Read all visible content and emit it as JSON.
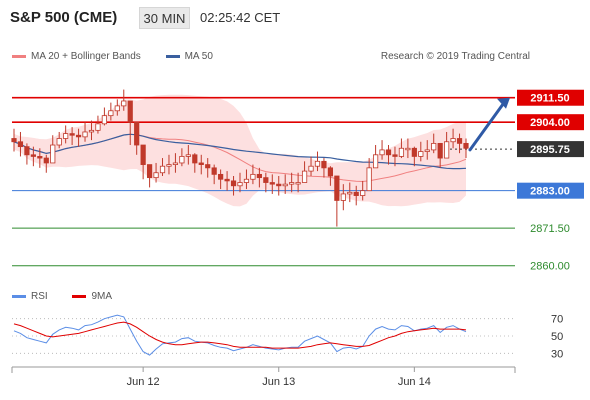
{
  "header": {
    "symbol": "S&P 500 (CME)",
    "timeframe": "30 MIN",
    "clock": "02:25:42 CET"
  },
  "legend": {
    "ma20_label": "MA 20 + Bollinger Bands",
    "ma50_label": "MA 50",
    "rsi_label": "RSI",
    "ma9_label": "9MA",
    "research": "Research © 2019 Trading Central"
  },
  "colors": {
    "band_fill": "#fde0e0",
    "ma20": "#f08080",
    "ma50": "#3a5f9f",
    "candle": "#c0392b",
    "resistance": "#e00000",
    "pivot": "#3c78d8",
    "support": "#2e8b2e",
    "current": "#333333",
    "forecast_arrow": "#2f5aa6",
    "rsi_line": "#5b8ee6",
    "ma9_line": "#e00000"
  },
  "chart_data": [
    {
      "type": "candlestick",
      "title": "S&P 500 (CME)",
      "interval": "30 MIN",
      "ylim": [
        2855,
        2920
      ],
      "x_ticks": [
        "Jun 12",
        "Jun 13",
        "Jun 14"
      ],
      "current_price": 2895.75,
      "levels": [
        {
          "label": "2911.50",
          "value": 2911.5,
          "role": "resistance"
        },
        {
          "label": "2904.00",
          "value": 2904.0,
          "role": "resistance"
        },
        {
          "label": "2895.75",
          "value": 2895.75,
          "role": "current"
        },
        {
          "label": "2883.00",
          "value": 2883.0,
          "role": "pivot"
        },
        {
          "label": "2871.50",
          "value": 2871.5,
          "role": "support"
        },
        {
          "label": "2860.00",
          "value": 2860.0,
          "role": "support"
        }
      ],
      "forecast": {
        "from": 2895.5,
        "to": 2911.5
      },
      "close": [
        2898,
        2896.5,
        2894,
        2893.5,
        2893,
        2891.5,
        2897,
        2899,
        2900.5,
        2900,
        2899.5,
        2901,
        2901.5,
        2903.5,
        2906,
        2907.5,
        2909,
        2910.5,
        2904,
        2897,
        2891,
        2887,
        2888.5,
        2890.5,
        2891,
        2891.5,
        2893.5,
        2894,
        2891.5,
        2891,
        2890,
        2888,
        2886.5,
        2886,
        2884.5,
        2885.5,
        2886.5,
        2888,
        2887,
        2885.5,
        2885,
        2884.5,
        2885,
        2885.5,
        2885.5,
        2889,
        2890.5,
        2892,
        2890,
        2887.5,
        2880,
        2882,
        2882.5,
        2881.5,
        2883,
        2890,
        2894,
        2895.5,
        2894,
        2893.5,
        2896,
        2896,
        2893.5,
        2895,
        2895.5,
        2897.5,
        2893,
        2898,
        2899,
        2897.5,
        2896
      ],
      "high": [
        2902,
        2901,
        2897.5,
        2896.5,
        2896,
        2894,
        2900,
        2901,
        2903,
        2902.5,
        2902,
        2904,
        2904.5,
        2906,
        2908.5,
        2910,
        2911,
        2914,
        2909,
        2900,
        2894.5,
        2890,
        2891.5,
        2893,
        2894,
        2894.5,
        2896,
        2897,
        2894.5,
        2894,
        2893,
        2891,
        2889.5,
        2889,
        2887.5,
        2888.5,
        2889.5,
        2891,
        2890,
        2888.5,
        2888,
        2887.5,
        2888,
        2888.5,
        2888.5,
        2892,
        2893.5,
        2895,
        2893,
        2890.5,
        2885,
        2885,
        2885.5,
        2884.5,
        2886,
        2893,
        2897,
        2898.5,
        2897,
        2896.5,
        2899,
        2899,
        2896.5,
        2898,
        2898.5,
        2900.5,
        2896,
        2901,
        2902,
        2900.5,
        2899
      ],
      "low": [
        2895,
        2893.5,
        2891,
        2890.5,
        2890,
        2888.5,
        2894,
        2896,
        2897.5,
        2897,
        2896.5,
        2898,
        2898.5,
        2900.5,
        2903,
        2904.5,
        2906,
        2907.5,
        2897,
        2894,
        2886.5,
        2884,
        2885.5,
        2887.5,
        2888,
        2888.5,
        2890.5,
        2891,
        2888.5,
        2888,
        2887,
        2885,
        2883.5,
        2883,
        2881.5,
        2882.5,
        2883.5,
        2885,
        2884,
        2882.5,
        2882,
        2881.5,
        2882,
        2882.5,
        2882.5,
        2886,
        2887.5,
        2889,
        2887,
        2884.5,
        2872,
        2877,
        2879.5,
        2878.5,
        2880,
        2887,
        2891,
        2892.5,
        2891,
        2890.5,
        2893,
        2893,
        2890.5,
        2892,
        2892.5,
        2894.5,
        2890,
        2895,
        2896,
        2894.5,
        2893
      ]
    },
    {
      "type": "line",
      "title": "RSI",
      "series": [
        {
          "name": "RSI",
          "values": [
            56,
            53,
            48,
            46,
            44,
            42,
            52,
            57,
            60,
            59,
            57,
            62,
            63,
            66,
            70,
            72,
            74,
            72,
            58,
            44,
            32,
            28,
            35,
            41,
            42,
            43,
            47,
            48,
            44,
            43,
            42,
            39,
            37,
            36,
            33,
            35,
            37,
            40,
            38,
            36,
            35,
            34,
            36,
            37,
            37,
            44,
            47,
            50,
            46,
            42,
            32,
            36,
            37,
            35,
            38,
            50,
            58,
            61,
            58,
            57,
            62,
            61,
            56,
            58,
            59,
            62,
            54,
            60,
            62,
            58,
            55
          ]
        },
        {
          "name": "9MA",
          "values": [
            64,
            62,
            59,
            56,
            53,
            50,
            49,
            50,
            51,
            52,
            53,
            55,
            57,
            59,
            61,
            63,
            65,
            66,
            64,
            60,
            55,
            50,
            46,
            43,
            41,
            40,
            40,
            41,
            42,
            43,
            43,
            42,
            41,
            40,
            38,
            37,
            37,
            37,
            37,
            37,
            36,
            36,
            36,
            36,
            36,
            37,
            38,
            40,
            41,
            42,
            41,
            40,
            39,
            38,
            38,
            39,
            42,
            45,
            48,
            50,
            53,
            55,
            56,
            57,
            58,
            59,
            58,
            58,
            58,
            58,
            57
          ]
        }
      ],
      "ylim": [
        20,
        80
      ],
      "y_ticks": [
        "70",
        "50",
        "30"
      ],
      "x_ticks": [
        "Jun 12",
        "Jun 13",
        "Jun 14"
      ]
    }
  ]
}
